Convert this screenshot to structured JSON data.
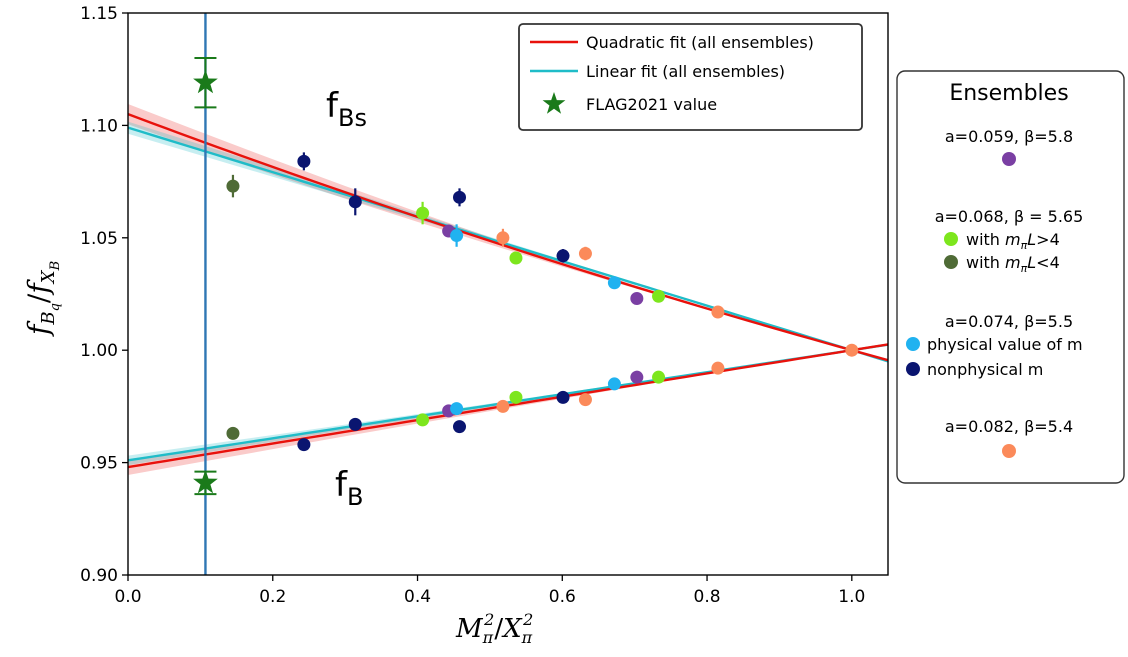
{
  "chart_data": {
    "type": "scatter",
    "xlim": [
      0.0,
      1.05
    ],
    "ylim": [
      0.9,
      1.15
    ],
    "xticks": [
      "0.0",
      "0.2",
      "0.4",
      "0.6",
      "0.8",
      "1.0"
    ],
    "yticks": [
      "0.90",
      "0.95",
      "1.00",
      "1.05",
      "1.10",
      "1.15"
    ],
    "xlabel": {
      "main": "M",
      "sub1": "π",
      "sup1": "2",
      "slash": "/",
      "main2": "X",
      "sub2": "π",
      "sup2": "2"
    },
    "ylabel": {
      "f1": "f",
      "sub1": "B",
      "subsub1": "q",
      "slash": "/",
      "f2": "f",
      "sub2": "X",
      "subsub2": "B"
    },
    "vertical_line_x": 0.107,
    "colors": {
      "quadratic": "#e8120c",
      "linear": "#1fbcc8",
      "flag": "#1a7a1a",
      "vline": "#2f77b4",
      "a059": "#7a3fa3",
      "a068_big": "#7de61d",
      "a068_small": "#4f6b36",
      "a074_phys": "#20b2f0",
      "a074_nonphys": "#0a1570",
      "a082": "#fb8a5a"
    },
    "legend": [
      {
        "label": "Quadratic fit (all ensembles)",
        "kind": "line",
        "color_key": "quadratic"
      },
      {
        "label": "Linear fit (all ensembles)",
        "kind": "line",
        "color_key": "linear"
      },
      {
        "label": "FLAG2021 value",
        "kind": "star",
        "color_key": "flag"
      }
    ],
    "annotations": {
      "fbs": {
        "main": "f",
        "sub": "Bs"
      },
      "fb": {
        "main": "f",
        "sub": "B"
      }
    },
    "fits": {
      "fbs": {
        "quadratic": {
          "a": 1.105,
          "b": -0.1205,
          "c": 0.0155
        },
        "linear": {
          "a": 1.099,
          "b": -0.099,
          "c": 0.0
        },
        "band_x": [
          0.0,
          0.1,
          0.2,
          0.3,
          0.4,
          0.5,
          0.6,
          0.7,
          0.8,
          0.9,
          1.0,
          1.05
        ],
        "band_width": [
          0.0045,
          0.004,
          0.0034,
          0.0028,
          0.0022,
          0.0016,
          0.0011,
          0.0007,
          0.0004,
          0.0002,
          0.0001,
          0.0002
        ]
      },
      "fb": {
        "quadratic": {
          "a": 0.948,
          "b": 0.0525,
          "c": -0.0005
        },
        "linear": {
          "a": 0.951,
          "b": 0.049,
          "c": 0.0
        },
        "band_x": [
          0.0,
          0.1,
          0.2,
          0.3,
          0.4,
          0.5,
          0.6,
          0.7,
          0.8,
          0.9,
          1.0,
          1.05
        ],
        "band_width": [
          0.0035,
          0.003,
          0.0025,
          0.002,
          0.0016,
          0.0012,
          0.0009,
          0.0006,
          0.0004,
          0.0002,
          0.0001,
          0.0002
        ]
      }
    },
    "flag_points": [
      {
        "x": 0.107,
        "y": 1.119,
        "err": 0.011
      },
      {
        "x": 0.107,
        "y": 0.941,
        "err": 0.005
      }
    ],
    "series": [
      {
        "name": "a=0.059, β=5.8",
        "color_key": "a059",
        "points": [
          [
            0.443,
            1.053,
            0.002
          ],
          [
            0.703,
            1.023,
            0.002
          ],
          [
            0.443,
            0.973,
            0.001
          ],
          [
            0.703,
            0.988,
            0.001
          ]
        ]
      },
      {
        "name": "with mπL>4",
        "color_key": "a068_big",
        "points": [
          [
            0.407,
            1.061,
            0.005
          ],
          [
            0.536,
            1.041,
            0.002
          ],
          [
            0.733,
            1.024,
            0.002
          ],
          [
            0.407,
            0.969,
            0.002
          ],
          [
            0.536,
            0.979,
            0.002
          ],
          [
            0.733,
            0.988,
            0.002
          ]
        ]
      },
      {
        "name": "with mπL<4",
        "color_key": "a068_small",
        "points": [
          [
            0.145,
            1.073,
            0.005
          ],
          [
            0.145,
            0.963,
            0.002
          ]
        ]
      },
      {
        "name": "physical value of m",
        "color_key": "a074_phys",
        "points": [
          [
            0.454,
            1.051,
            0.005
          ],
          [
            0.672,
            1.03,
            0.002
          ],
          [
            0.454,
            0.974,
            0.002
          ],
          [
            0.672,
            0.985,
            0.002
          ]
        ]
      },
      {
        "name": "nonphysical m",
        "color_key": "a074_nonphys",
        "points": [
          [
            0.243,
            1.084,
            0.004
          ],
          [
            0.314,
            1.066,
            0.006
          ],
          [
            0.458,
            1.068,
            0.004
          ],
          [
            0.601,
            1.042,
            0.003
          ],
          [
            0.243,
            0.958,
            0.002
          ],
          [
            0.314,
            0.967,
            0.002
          ],
          [
            0.458,
            0.966,
            0.002
          ],
          [
            0.601,
            0.979,
            0.002
          ]
        ]
      },
      {
        "name": "a=0.082, β=5.4",
        "color_key": "a082",
        "points": [
          [
            0.518,
            1.05,
            0.004
          ],
          [
            0.632,
            1.043,
            0.003
          ],
          [
            0.815,
            1.017,
            0.002
          ],
          [
            1.0,
            1.0,
            0.0
          ],
          [
            0.518,
            0.975,
            0.002
          ],
          [
            0.632,
            0.978,
            0.002
          ],
          [
            0.815,
            0.992,
            0.002
          ]
        ]
      }
    ],
    "ensembles_panel": {
      "title": "Ensembles",
      "groups": [
        {
          "label": "a=0.059, β=5.8",
          "items": [
            {
              "text": "",
              "color_key": "a059"
            }
          ]
        },
        {
          "label": "a=0.068, β = 5.65",
          "items": [
            {
              "pre": "with ",
              "m": "m",
              "sub": "π",
              "L": "L",
              "cond": ">4",
              "color_key": "a068_big"
            },
            {
              "pre": "with ",
              "m": "m",
              "sub": "π",
              "L": "L",
              "cond": "<4",
              "color_key": "a068_small"
            }
          ]
        },
        {
          "label": "a=0.074, β=5.5",
          "items": [
            {
              "text": "physical value of m",
              "color_key": "a074_phys"
            },
            {
              "text": "nonphysical m",
              "color_key": "a074_nonphys"
            }
          ]
        },
        {
          "label": "a=0.082, β=5.4",
          "items": [
            {
              "text": "",
              "color_key": "a082"
            }
          ]
        }
      ]
    }
  }
}
